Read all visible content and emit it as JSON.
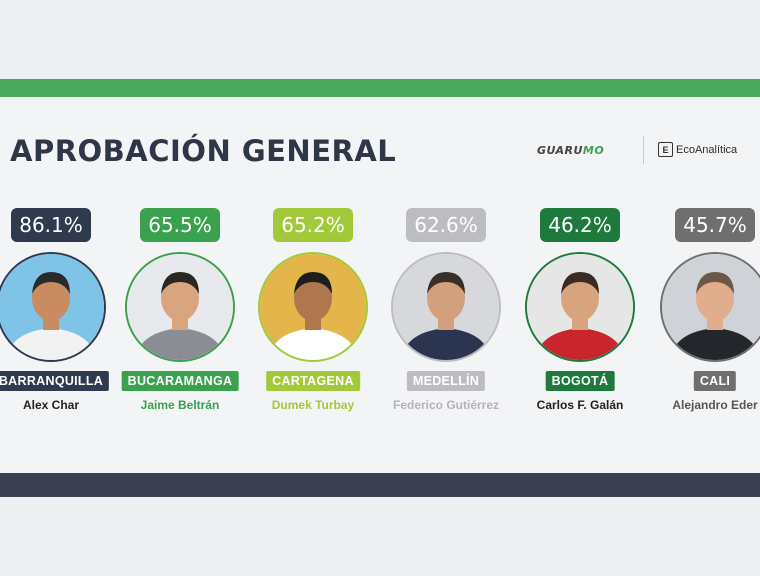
{
  "title": "APROBACIÓN GENERAL",
  "logos": {
    "guarumo_main": "GUARU",
    "guarumo_accent": "MO",
    "eco_icon": "E",
    "eco_text": "EcoAnalítica"
  },
  "colors": {
    "top_bar": "#48a95c",
    "bottom_bar": "#3b4150"
  },
  "chart_data": {
    "type": "bar",
    "title": "APROBACIÓN GENERAL",
    "unit": "%",
    "categories": [
      "BARRANQUILLA",
      "BUCARAMANGA",
      "CARTAGENA",
      "MEDELLÍN",
      "BOGOTÁ",
      "CALI"
    ],
    "values": [
      86.1,
      65.5,
      65.2,
      62.6,
      46.2,
      45.7
    ],
    "labels": [
      "86.1%",
      "65.5%",
      "65.2%",
      "62.6%",
      "46.2%",
      "45.7%"
    ],
    "names": [
      "Alex Char",
      "Jaime Beltrán",
      "Dumek Turbay",
      "Federico Gutiérrez",
      "Carlos F. Galán",
      "Alejandro Eder"
    ],
    "colors": [
      "#2f3a4e",
      "#3aa14f",
      "#a2c93a",
      "#bcbdc0",
      "#1e7a3c",
      "#6f6f70"
    ]
  }
}
